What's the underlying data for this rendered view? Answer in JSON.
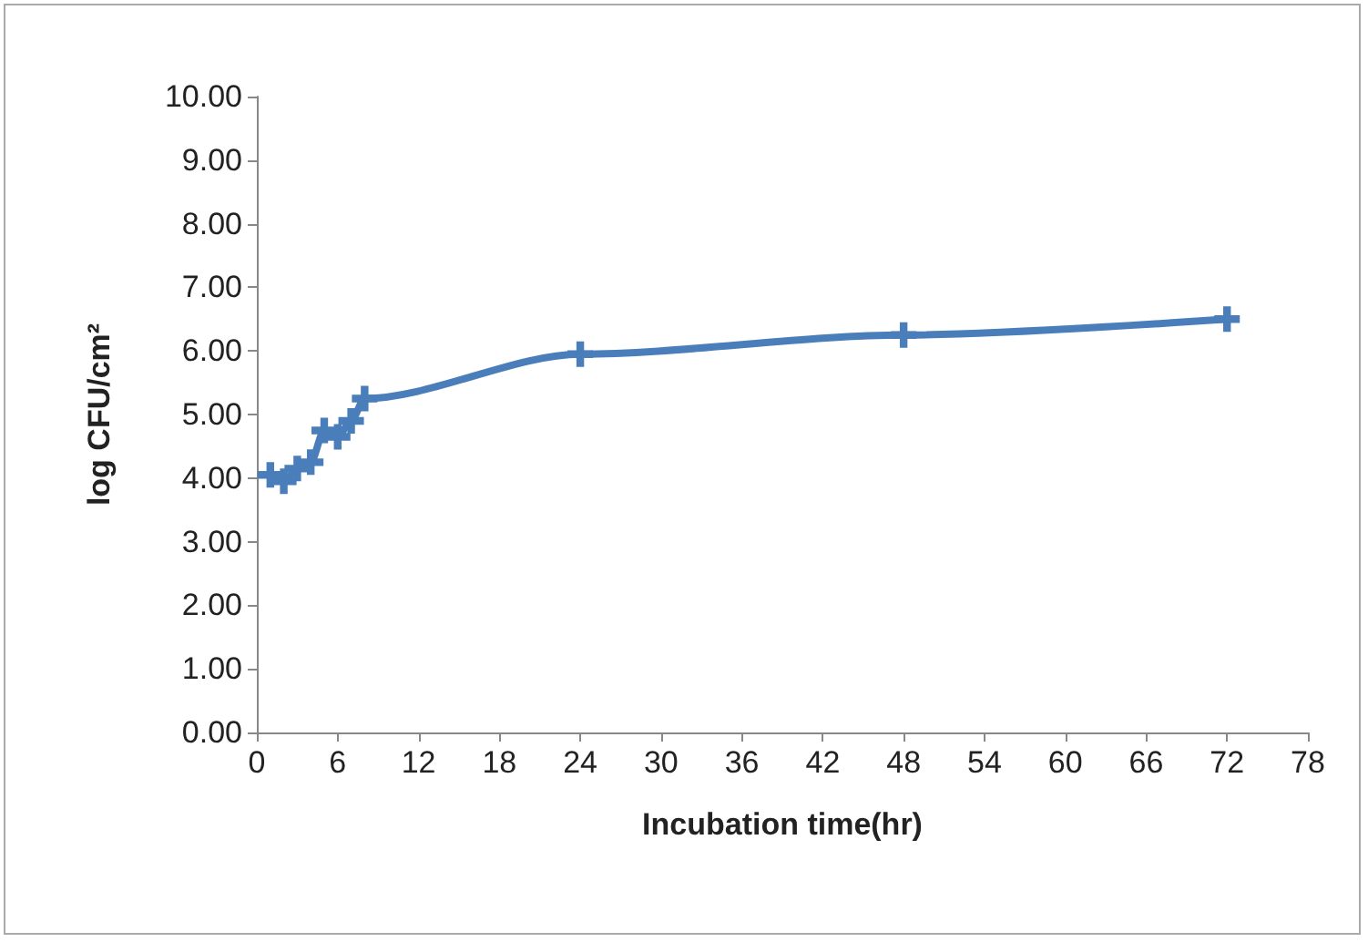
{
  "chart_data": {
    "type": "line",
    "xlabel": "Incubation time(hr)",
    "ylabel": "log CFU/cm²",
    "x": [
      1,
      2,
      3,
      4,
      5,
      6,
      7,
      8,
      24,
      48,
      72
    ],
    "series": [
      {
        "color": "#4a7ebb",
        "values": [
          4.05,
          3.95,
          4.15,
          4.25,
          4.75,
          4.65,
          4.9,
          5.25,
          5.95,
          6.25,
          6.5
        ]
      }
    ],
    "xlim": [
      0,
      78
    ],
    "xticks": [
      0,
      6,
      12,
      18,
      24,
      30,
      36,
      42,
      48,
      54,
      60,
      66,
      72,
      78
    ],
    "ylim": [
      0,
      10
    ],
    "yticks": [
      {
        "value": 0,
        "label": "0.00"
      },
      {
        "value": 1,
        "label": "1.00"
      },
      {
        "value": 2,
        "label": "2.00"
      },
      {
        "value": 3,
        "label": "3.00"
      },
      {
        "value": 4,
        "label": "4.00"
      },
      {
        "value": 5,
        "label": "5.00"
      },
      {
        "value": 6,
        "label": "6.00"
      },
      {
        "value": 7,
        "label": "7.00"
      },
      {
        "value": 8,
        "label": "8.00"
      },
      {
        "value": 9,
        "label": "9.00"
      },
      {
        "value": 10,
        "label": "10.00"
      }
    ],
    "grid": false,
    "marker": "cross",
    "line_style": "solid"
  }
}
